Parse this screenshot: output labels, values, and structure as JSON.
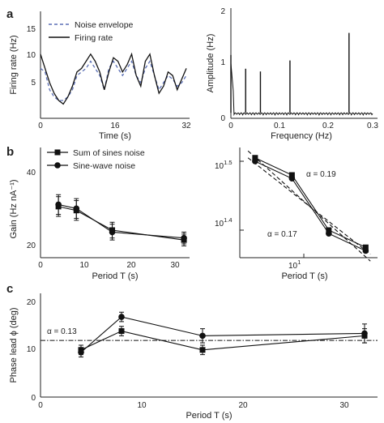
{
  "panels": {
    "a_left": {
      "letter": "a",
      "xlabel": "Time (s)",
      "ylabel": "Firing rate (Hz)",
      "xticks": [
        "0",
        "16",
        "32"
      ],
      "yticks": [
        "5",
        "10",
        "15"
      ],
      "legend": [
        "Noise envelope",
        "Firing rate"
      ]
    },
    "a_right": {
      "xlabel": "Frequency (Hz)",
      "ylabel": "Amplitude (Hz)",
      "xticks": [
        "0",
        "0.1",
        "0.2",
        "0.3"
      ],
      "yticks": [
        "0",
        "1",
        "2"
      ]
    },
    "b_left": {
      "letter": "b",
      "xlabel": "Period T (s)",
      "ylabel": "Gain (Hz nA⁻¹)",
      "xticks": [
        "0",
        "10",
        "20",
        "30"
      ],
      "yticks": [
        "20",
        "40"
      ],
      "legend": [
        "Sum of sines noise",
        "Sine-wave noise"
      ]
    },
    "b_right": {
      "xlabel": "Period T (s)",
      "xtick": "10",
      "xtick_exp": "1",
      "yticks": [
        {
          "base": "10",
          "exp": "1.5"
        },
        {
          "base": "10",
          "exp": "1.4"
        }
      ],
      "annotations": [
        "α = 0.19",
        "α = 0.17"
      ]
    },
    "c": {
      "letter": "c",
      "xlabel": "Period T (s)",
      "ylabel": "Phase lead ϕ (deg)",
      "xticks": [
        "0",
        "10",
        "20",
        "30"
      ],
      "yticks": [
        "0",
        "10",
        "20"
      ],
      "annotation": "α = 0.13"
    }
  },
  "colors": {
    "envelope": "#5b6fb5",
    "firing": "#111111",
    "axis": "#222222"
  },
  "chart_data": [
    {
      "type": "line",
      "panel": "a_left",
      "xlabel": "Time (s)",
      "ylabel": "Firing rate (Hz)",
      "xlim": [
        0,
        32
      ],
      "ylim": [
        2,
        17
      ],
      "series": [
        {
          "name": "Noise envelope",
          "style": "dashed",
          "x": [
            0,
            1,
            2,
            3,
            4,
            5,
            6,
            7,
            8,
            9,
            10,
            11,
            12,
            13,
            14,
            15,
            16,
            17,
            18,
            19,
            20,
            21,
            22,
            23,
            24,
            25,
            26,
            27,
            28,
            29,
            30,
            31,
            32
          ],
          "values": [
            9,
            8.5,
            6,
            5,
            4.5,
            4.5,
            5,
            6,
            8,
            8.5,
            9,
            10,
            9,
            8,
            6,
            9,
            10,
            9,
            8,
            9,
            10,
            8,
            7,
            9,
            10,
            8,
            6,
            7,
            8,
            7.5,
            6.5,
            7,
            8
          ]
        },
        {
          "name": "Firing rate",
          "style": "solid",
          "x": [
            0,
            1,
            2,
            3,
            4,
            5,
            6,
            7,
            8,
            9,
            10,
            11,
            12,
            13,
            14,
            15,
            16,
            17,
            18,
            19,
            20,
            21,
            22,
            23,
            24,
            25,
            26,
            27,
            28,
            29,
            30,
            31,
            32
          ],
          "values": [
            11,
            9,
            7,
            5.5,
            4.5,
            4,
            5,
            6.5,
            8.5,
            9,
            10,
            11,
            10,
            8.5,
            6,
            8.5,
            10.5,
            10,
            8.5,
            9.5,
            11,
            8,
            6.5,
            10,
            11,
            8,
            5.5,
            6.5,
            8.5,
            8,
            6,
            7.5,
            9
          ]
        }
      ]
    },
    {
      "type": "line",
      "panel": "a_right",
      "xlabel": "Frequency (Hz)",
      "ylabel": "Amplitude (Hz)",
      "xlim": [
        0,
        0.3
      ],
      "ylim": [
        0,
        2
      ],
      "series": [
        {
          "name": "",
          "x": [
            0,
            0.03125,
            0.0625,
            0.125,
            0.25
          ],
          "values": [
            1.15,
            0.9,
            0.85,
            1.05,
            1.55
          ],
          "baseline": 0.1
        }
      ]
    },
    {
      "type": "line",
      "panel": "b_left",
      "xlabel": "Period T (s)",
      "ylabel": "Gain (Hz nA⁻¹)",
      "xlim": [
        0,
        33
      ],
      "ylim": [
        18,
        46
      ],
      "series": [
        {
          "name": "Sum of sines noise",
          "marker": "square",
          "x": [
            4,
            8,
            16,
            32
          ],
          "values": [
            31,
            30,
            25,
            22.5
          ],
          "err": [
            2.5,
            2.5,
            2,
            1.5
          ]
        },
        {
          "name": "Sine-wave noise",
          "marker": "circle",
          "x": [
            4,
            8,
            16,
            32
          ],
          "values": [
            31.5,
            30.5,
            24.5,
            23
          ],
          "err": [
            2.5,
            2.5,
            2,
            1.5
          ]
        }
      ]
    },
    {
      "type": "line",
      "panel": "b_right",
      "scale": "log",
      "xlabel": "Period T (s)",
      "xlim": [
        3,
        40
      ],
      "ylim": [
        1.36,
        1.52
      ],
      "series": [
        {
          "name": "Sum of sines noise",
          "marker": "square",
          "x": [
            4,
            8,
            16,
            32
          ],
          "values": [
            1.505,
            1.48,
            1.4,
            1.375
          ]
        },
        {
          "name": "Sine-wave noise",
          "marker": "circle",
          "x": [
            4,
            8,
            16,
            32
          ],
          "values": [
            1.5,
            1.475,
            1.395,
            1.37
          ]
        },
        {
          "name": "",
          "style": "dashed",
          "x": [
            3.5,
            35
          ],
          "values": [
            1.515,
            1.355
          ]
        },
        {
          "name": "",
          "style": "dashed",
          "x": [
            3.5,
            35
          ],
          "values": [
            1.505,
            1.365
          ]
        }
      ]
    },
    {
      "type": "line",
      "panel": "c",
      "xlabel": "Period T (s)",
      "ylabel": "Phase lead ϕ (deg)",
      "xlim": [
        0,
        33
      ],
      "ylim": [
        0,
        22
      ],
      "reference_line": 12,
      "series": [
        {
          "name": "Sum of sines noise",
          "marker": "square",
          "x": [
            4,
            8,
            16,
            32
          ],
          "values": [
            10,
            14,
            10,
            13
          ],
          "err": [
            1,
            1,
            1,
            1.5
          ]
        },
        {
          "name": "Sine-wave noise",
          "marker": "circle",
          "x": [
            4,
            8,
            16,
            32
          ],
          "values": [
            9.5,
            17,
            13,
            13.5
          ],
          "err": [
            1,
            1,
            1.5,
            2
          ]
        }
      ]
    }
  ]
}
